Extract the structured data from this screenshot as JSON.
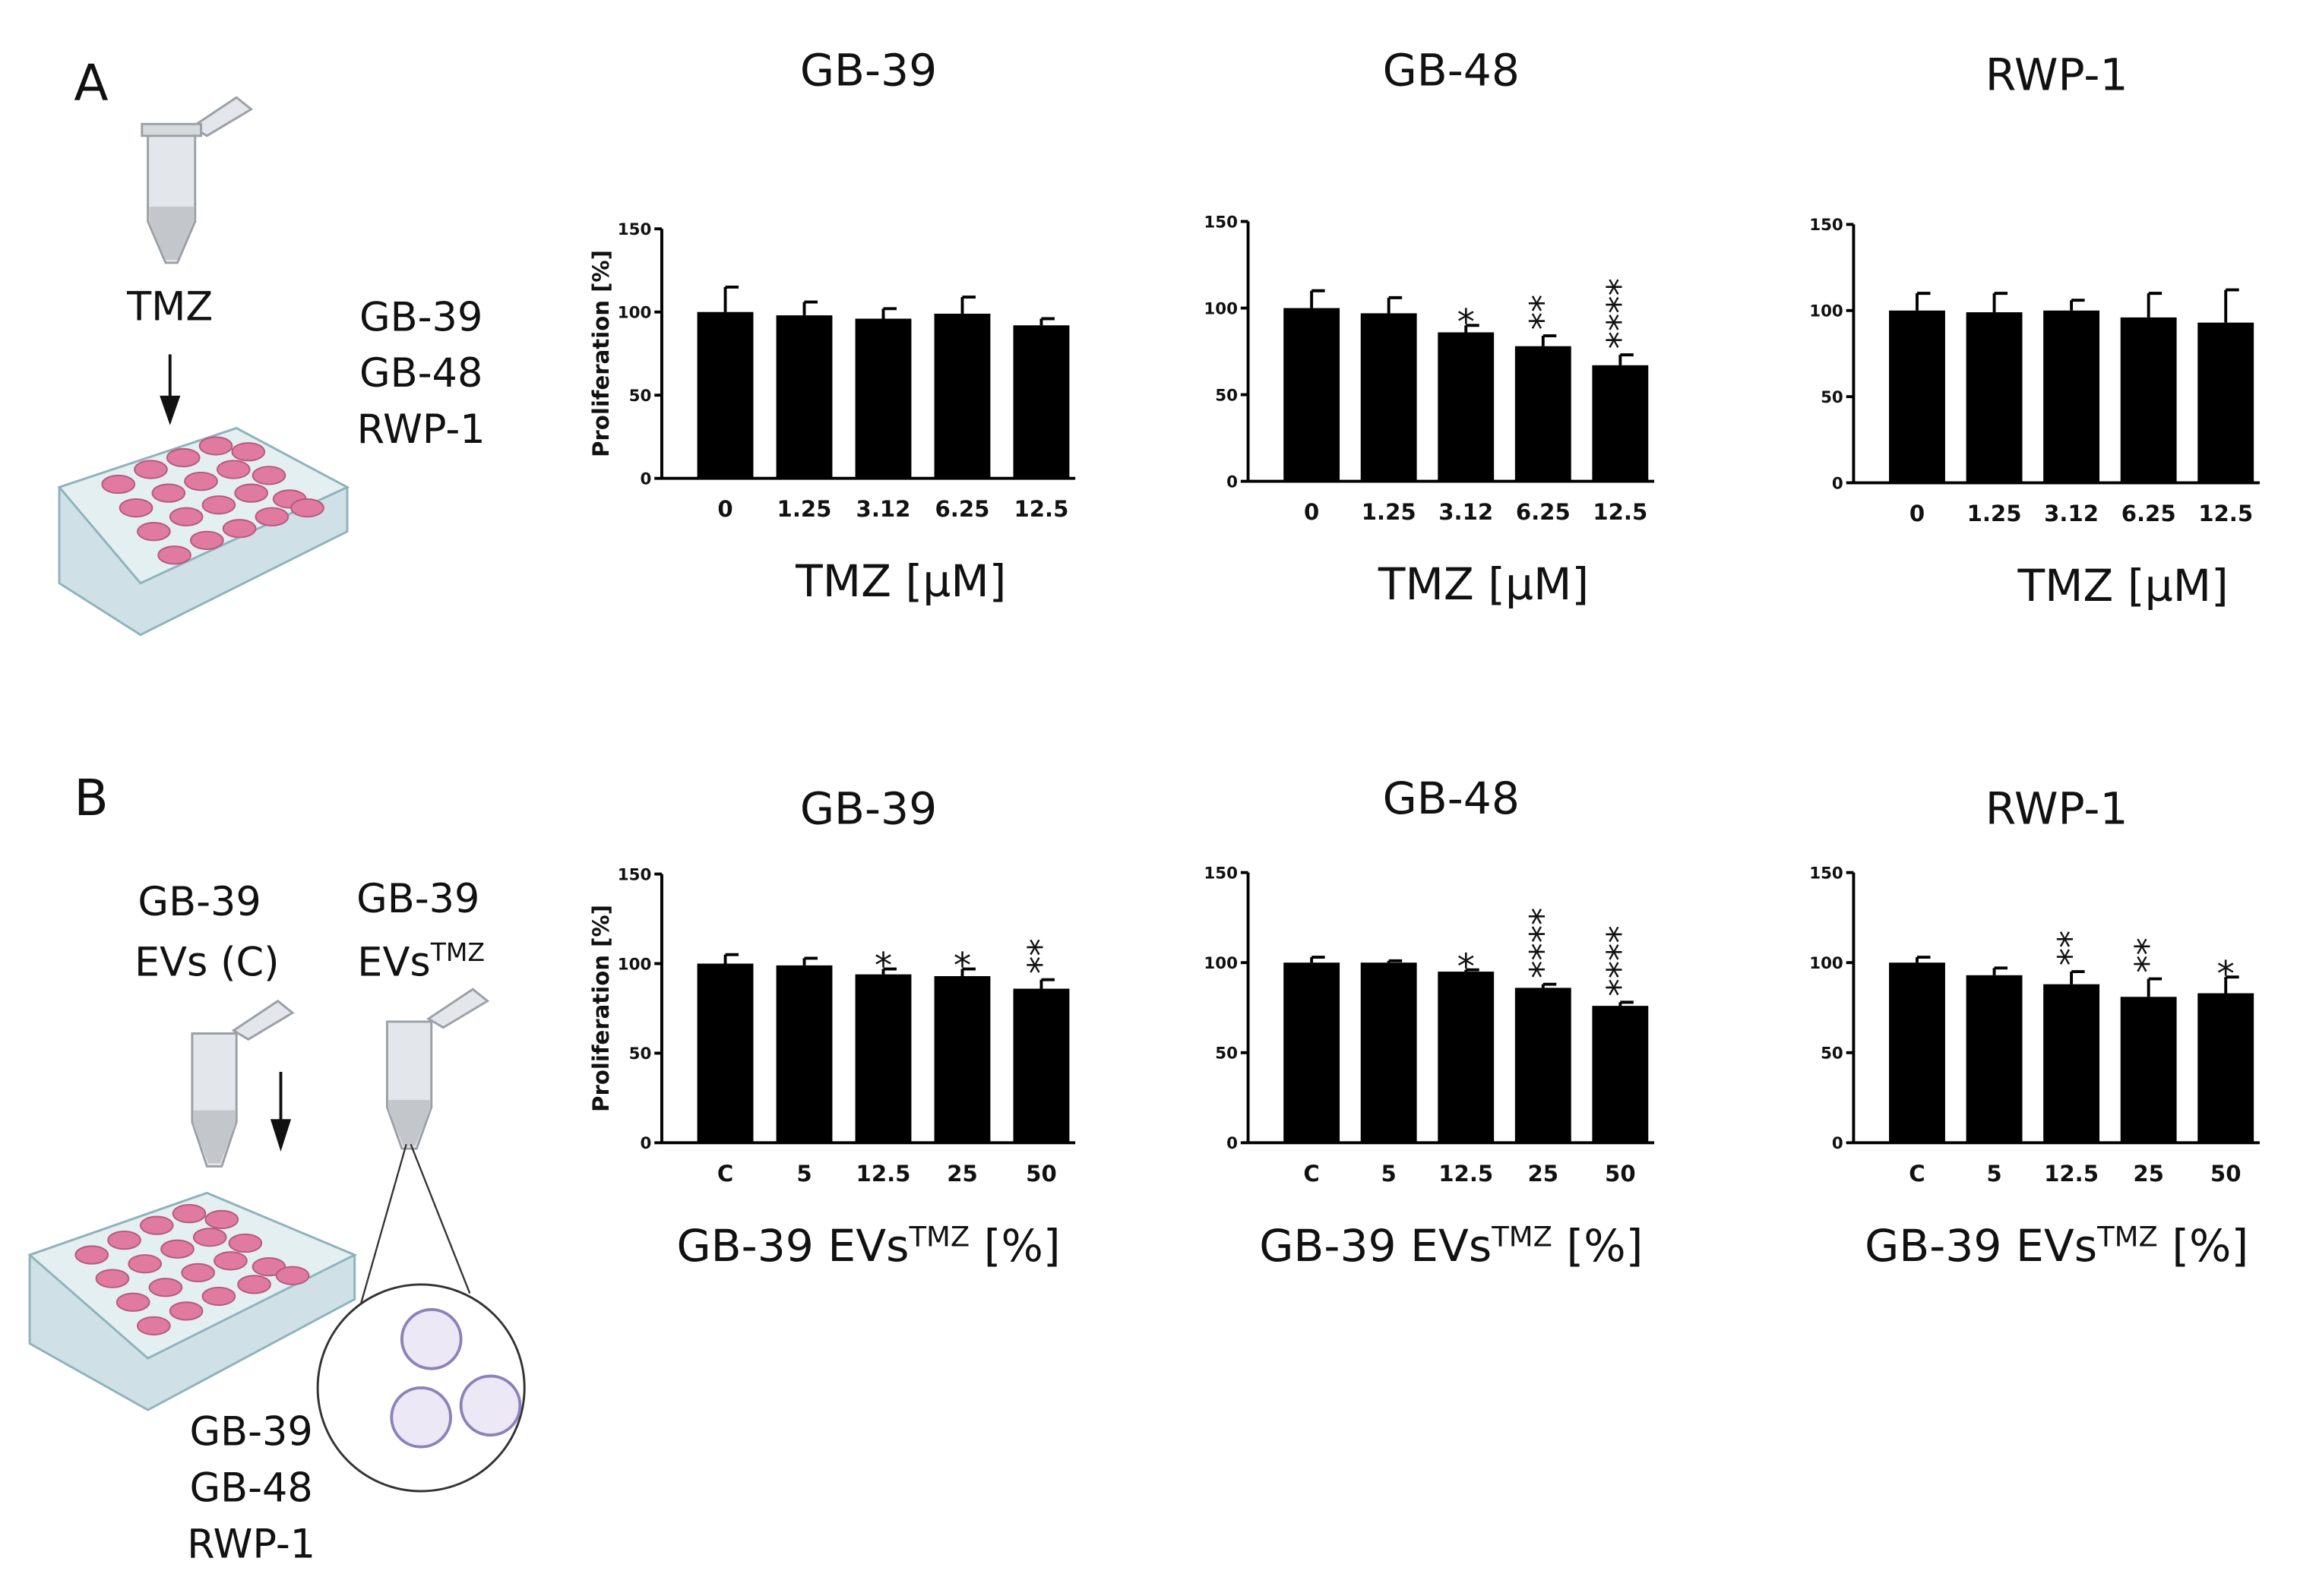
{
  "illustrations": {
    "A": {
      "label": "A",
      "reagent": "TMZ",
      "cell_lines": [
        "GB-39",
        "GB-48",
        "RWP-1"
      ]
    },
    "B": {
      "label": "B",
      "control": [
        "GB-39",
        "EVs (C)"
      ],
      "treatment": {
        "line": "GB-39",
        "text": "EVs",
        "superscript": "TMZ"
      },
      "cell_lines": [
        "GB-39",
        "GB-48",
        "RWP-1"
      ]
    }
  },
  "chart_data": [
    {
      "type": "bar",
      "title": "GB-39",
      "ylabel": "Proliferation [%]",
      "xlabel": {
        "text": "TMZ [µM]"
      },
      "categories": [
        "0",
        "1.25",
        "3.12",
        "6.25",
        "12.5"
      ],
      "values": [
        100,
        98,
        96,
        99,
        92
      ],
      "errors": [
        15,
        8,
        6,
        10,
        4
      ],
      "annotations": [
        null,
        null,
        null,
        null,
        null
      ],
      "color": "#000000",
      "ylim": [
        0,
        150
      ],
      "yticks": [
        0,
        50,
        100,
        150
      ]
    },
    {
      "type": "bar",
      "title": "GB-48",
      "xlabel": {
        "text": "TMZ [µM]"
      },
      "categories": [
        "0",
        "1.25",
        "3.12",
        "6.25",
        "12.5"
      ],
      "values": [
        100,
        97,
        86,
        78,
        67
      ],
      "errors": [
        10,
        9,
        4,
        6,
        6
      ],
      "annotations": [
        null,
        null,
        "*",
        "**",
        "****"
      ],
      "color": "#000000",
      "ylim": [
        0,
        150
      ],
      "yticks": [
        0,
        50,
        100,
        150
      ]
    },
    {
      "type": "bar",
      "title": "RWP-1",
      "xlabel": {
        "text": "TMZ [µM]"
      },
      "categories": [
        "0",
        "1.25",
        "3.12",
        "6.25",
        "12.5"
      ],
      "values": [
        100,
        99,
        100,
        96,
        93
      ],
      "errors": [
        10,
        11,
        6,
        14,
        19
      ],
      "annotations": [
        null,
        null,
        null,
        null,
        null
      ],
      "color": "#000000",
      "ylim": [
        0,
        150
      ],
      "yticks": [
        0,
        50,
        100,
        150
      ]
    },
    {
      "type": "bar",
      "title": "GB-39",
      "ylabel": "Proliferation [%]",
      "xlabel": {
        "text": "GB-39 EVs",
        "superscript": "TMZ",
        "suffix": " [%]"
      },
      "categories": [
        "C",
        "5",
        "12.5",
        "25",
        "50"
      ],
      "values": [
        100,
        99,
        94,
        93,
        86
      ],
      "errors": [
        5,
        4,
        3,
        4,
        5
      ],
      "annotations": [
        null,
        null,
        "*",
        "*",
        "**"
      ],
      "color": "#000000",
      "ylim": [
        0,
        150
      ],
      "yticks": [
        0,
        50,
        100,
        150
      ]
    },
    {
      "type": "bar",
      "title": "GB-48",
      "xlabel": {
        "text": "GB-39 EVs",
        "superscript": "TMZ",
        "suffix": " [%]"
      },
      "categories": [
        "C",
        "5",
        "12.5",
        "25",
        "50"
      ],
      "values": [
        100,
        100,
        95,
        86,
        76
      ],
      "errors": [
        3,
        1,
        1,
        2,
        2
      ],
      "annotations": [
        null,
        null,
        "*",
        "****",
        "****"
      ],
      "color": "#000000",
      "ylim": [
        0,
        150
      ],
      "yticks": [
        0,
        50,
        100,
        150
      ]
    },
    {
      "type": "bar",
      "title": "RWP-1",
      "xlabel": {
        "text": "GB-39 EVs",
        "superscript": "TMZ",
        "suffix": " [%]"
      },
      "categories": [
        "C",
        "5",
        "12.5",
        "25",
        "50"
      ],
      "values": [
        100,
        93,
        88,
        81,
        83
      ],
      "errors": [
        3,
        4,
        7,
        10,
        9
      ],
      "annotations": [
        null,
        null,
        "**",
        "**",
        "*"
      ],
      "color": "#000000",
      "ylim": [
        0,
        150
      ],
      "yticks": [
        0,
        50,
        100,
        150
      ]
    }
  ]
}
